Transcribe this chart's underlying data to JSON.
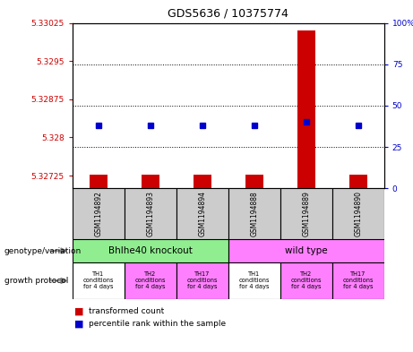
{
  "title": "GDS5636 / 10375774",
  "samples": [
    "GSM1194892",
    "GSM1194893",
    "GSM1194894",
    "GSM1194888",
    "GSM1194889",
    "GSM1194890"
  ],
  "transformed_counts": [
    5.32726,
    5.32726,
    5.32726,
    5.32726,
    5.3301,
    5.32726
  ],
  "percentile_ranks": [
    38,
    38,
    38,
    38,
    40,
    38
  ],
  "ylim_left": [
    5.327,
    5.33025
  ],
  "yticks_left": [
    5.32725,
    5.328,
    5.32875,
    5.3295,
    5.33025
  ],
  "yticks_right": [
    0,
    25,
    50,
    75,
    100
  ],
  "ylim_right": [
    0,
    100
  ],
  "genotype_groups": [
    {
      "label": "Bhlhe40 knockout",
      "start": 0,
      "end": 3,
      "color": "#90ee90"
    },
    {
      "label": "wild type",
      "start": 3,
      "end": 6,
      "color": "#ff80ff"
    }
  ],
  "growth_colors": [
    "#ffffff",
    "#ff80ff",
    "#ff80ff",
    "#ffffff",
    "#ff80ff",
    "#ff80ff"
  ],
  "growth_labels": [
    "TH1\nconditions\nfor 4 days",
    "TH2\nconditions\nfor 4 days",
    "TH17\nconditions\nfor 4 days",
    "TH1\nconditions\nfor 4 days",
    "TH2\nconditions\nfor 4 days",
    "TH17\nconditions\nfor 4 days"
  ],
  "bar_color": "#cc0000",
  "dot_color": "#0000cc",
  "sample_box_color": "#cccccc",
  "bg_color": "#ffffff",
  "left_axis_color": "#cc0000",
  "right_axis_color": "#0000cc"
}
